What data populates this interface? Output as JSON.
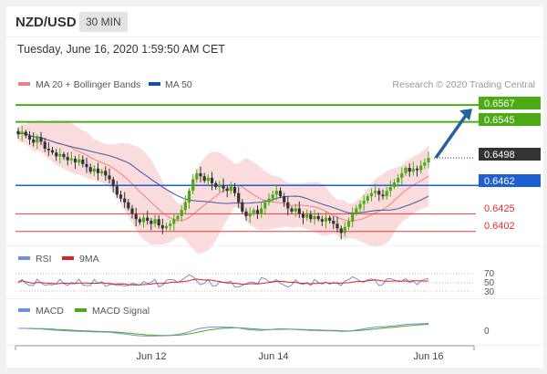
{
  "header": {
    "symbol": "NZD/USD",
    "timeframe": "30 MIN",
    "datetime": "Tuesday, June 16, 2020 1:59:50 AM CET"
  },
  "legend": {
    "ma20_bb": "MA 20 + Bollinger Bands",
    "ma50": "MA 50",
    "credit": "Research © 2020 Trading Central"
  },
  "colors": {
    "green": "#4caa14",
    "blue": "#1d5fd0",
    "red": "#e04040",
    "dark": "#333333",
    "band_fill": "#fbdcdc",
    "ma20": "#f08080",
    "ma50": "#3b55a8",
    "candle_up": "#4caa14",
    "candle_down": "#333333",
    "arrow": "#24629e",
    "rsi": "#6f8fe0",
    "rsi_ma": "#e02020",
    "macd": "#6f8fe0",
    "macd_signal": "#4caa14"
  },
  "levels": [
    {
      "value": "0.6567",
      "kind": "resistance"
    },
    {
      "value": "0.6545",
      "kind": "resistance"
    },
    {
      "value": "0.6498",
      "kind": "current"
    },
    {
      "value": "0.6462",
      "kind": "pivot"
    },
    {
      "value": "0.6425",
      "kind": "support"
    },
    {
      "value": "0.6402",
      "kind": "support"
    }
  ],
  "rsi": {
    "label": "RSI",
    "ma_label": "9MA",
    "levels": [
      "70",
      "50",
      "30"
    ]
  },
  "macd": {
    "label": "MACD",
    "signal_label": "MACD Signal",
    "zero": "0"
  },
  "x_axis": {
    "ticks": [
      "Jun 12",
      "Jun 14",
      "Jun 16"
    ]
  },
  "chart_data": {
    "type": "candlestick",
    "pair": "NZD/USD",
    "interval": "30 MIN",
    "y_range": [
      0.6385,
      0.6585
    ],
    "levels": [
      0.6567,
      0.6545,
      0.6498,
      0.6462,
      0.6425,
      0.6402
    ],
    "close": [
      0.6529,
      0.6532,
      0.6527,
      0.6522,
      0.6518,
      0.6525,
      0.6519,
      0.651,
      0.6508,
      0.6505,
      0.65,
      0.6503,
      0.6499,
      0.6495,
      0.6497,
      0.6492,
      0.6496,
      0.649,
      0.6486,
      0.648,
      0.6484,
      0.6478,
      0.6481,
      0.6475,
      0.647,
      0.6461,
      0.645,
      0.6445,
      0.644,
      0.6432,
      0.6425,
      0.6418,
      0.6414,
      0.642,
      0.6416,
      0.6412,
      0.6418,
      0.641,
      0.6406,
      0.6409,
      0.6412,
      0.6418,
      0.6422,
      0.643,
      0.644,
      0.6455,
      0.647,
      0.6478,
      0.6474,
      0.6468,
      0.6472,
      0.6465,
      0.646,
      0.6462,
      0.6458,
      0.6455,
      0.646,
      0.6452,
      0.644,
      0.6428,
      0.6422,
      0.6426,
      0.643,
      0.6425,
      0.6432,
      0.644,
      0.6445,
      0.645,
      0.6455,
      0.6448,
      0.644,
      0.6432,
      0.6428,
      0.6432,
      0.6425,
      0.642,
      0.6424,
      0.6418,
      0.6422,
      0.6418,
      0.6415,
      0.642,
      0.6416,
      0.6412,
      0.6406,
      0.64,
      0.6408,
      0.6415,
      0.6425,
      0.6432,
      0.6438,
      0.6442,
      0.6448,
      0.6452,
      0.6455,
      0.645,
      0.6448,
      0.6455,
      0.646,
      0.6466,
      0.6472,
      0.6478,
      0.6485,
      0.648,
      0.6484,
      0.6482,
      0.6488,
      0.6492,
      0.6498
    ],
    "forecast_target": 0.6567
  }
}
